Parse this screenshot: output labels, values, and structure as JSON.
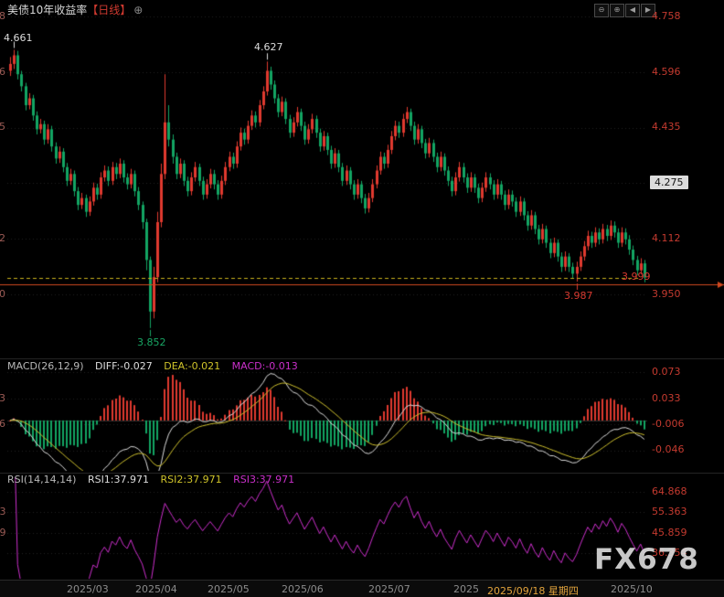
{
  "header": {
    "title": "美债10年收益率",
    "period": "【日线】",
    "add_icon": "⊕"
  },
  "toolbar": {
    "buttons": [
      {
        "name": "zoom-out",
        "glyph": "⊖"
      },
      {
        "name": "zoom-in",
        "glyph": "⊕"
      },
      {
        "name": "pan-left",
        "glyph": "◀"
      },
      {
        "name": "pan-right",
        "glyph": "▶"
      }
    ]
  },
  "right_axis": {
    "main": [
      "4.758",
      "4.596",
      "4.435",
      "4.112",
      "3.950"
    ],
    "highlight": "4.275",
    "macd": [
      "0.073",
      "0.033",
      "-0.006",
      "-0.046"
    ],
    "rsi": [
      "64.868",
      "55.363",
      "45.859",
      "36.354"
    ]
  },
  "indicator_rows": {
    "macd": {
      "name": "MACD(26,12,9)",
      "diff": "DIFF:-0.027",
      "dea": "DEA:-0.021",
      "macd": "MACD:-0.013"
    },
    "rsi": {
      "name": "RSI(14,14,14)",
      "rsi1": "RSI1:37.971",
      "rsi2": "RSI2:37.971",
      "rsi3": "RSI3:37.971"
    }
  },
  "x_axis": {
    "ticks": [
      "2025/03",
      "2025/04",
      "2025/05",
      "2025/06",
      "2025/07",
      "2025"
    ],
    "selected": "2025/09/18 星期四",
    "last": "2025/10"
  },
  "price_labels": {
    "last": "3.999"
  },
  "watermark": "FX678",
  "colors": {
    "candle_up": "#e03a2f",
    "candle_down": "#13a463",
    "diff_line": "#dcdcdc",
    "dea_line": "#cdbf2d",
    "rsi_line": "#cc2fcc",
    "dashed_line": "#c9b21d",
    "solid_line": "#d1491f",
    "axis_label": "#c43a2f",
    "grid": "#202020"
  },
  "chart_data": [
    {
      "type": "candlestick",
      "title": "美债10年收益率【日线】",
      "y_ticks": [
        4.758,
        4.596,
        4.435,
        4.273,
        4.112,
        3.95
      ],
      "x_tick_labels": [
        "2025/03",
        "2025/04",
        "2025/05",
        "2025/06",
        "2025/07",
        "2025",
        "2025/09/18 星期四",
        "2025/10"
      ],
      "last_close": 3.999,
      "dashed_line": 3.999,
      "solid_line": 3.978,
      "annotations": [
        {
          "index": 1,
          "label": "4.661",
          "placement": "above",
          "color": "#dcdcdc"
        },
        {
          "index": 68,
          "label": "4.627",
          "placement": "above",
          "color": "#dcdcdc"
        },
        {
          "index": 37,
          "label": "3.852",
          "placement": "below",
          "color": "#18a664"
        },
        {
          "index": 150,
          "label": "3.987",
          "placement": "below",
          "color": "#d83a30"
        }
      ],
      "candles": [
        [
          4.6,
          4.64,
          4.585,
          4.62
        ],
        [
          4.62,
          4.661,
          4.605,
          4.645
        ],
        [
          4.645,
          4.658,
          4.575,
          4.59
        ],
        [
          4.59,
          4.6,
          4.54,
          4.555
        ],
        [
          4.555,
          4.565,
          4.485,
          4.5
        ],
        [
          4.5,
          4.535,
          4.488,
          4.52
        ],
        [
          4.52,
          4.53,
          4.455,
          4.47
        ],
        [
          4.47,
          4.482,
          4.415,
          4.43
        ],
        [
          4.43,
          4.46,
          4.418,
          4.445
        ],
        [
          4.445,
          4.455,
          4.385,
          4.4
        ],
        [
          4.4,
          4.445,
          4.388,
          4.43
        ],
        [
          4.43,
          4.44,
          4.365,
          4.38
        ],
        [
          4.38,
          4.392,
          4.33,
          4.345
        ],
        [
          4.345,
          4.38,
          4.332,
          4.365
        ],
        [
          4.365,
          4.375,
          4.305,
          4.32
        ],
        [
          4.32,
          4.332,
          4.265,
          4.28
        ],
        [
          4.28,
          4.315,
          4.268,
          4.3
        ],
        [
          4.3,
          4.31,
          4.235,
          4.25
        ],
        [
          4.25,
          4.262,
          4.195,
          4.21
        ],
        [
          4.21,
          4.245,
          4.198,
          4.23
        ],
        [
          4.23,
          4.24,
          4.175,
          4.19
        ],
        [
          4.19,
          4.235,
          4.178,
          4.22
        ],
        [
          4.22,
          4.275,
          4.208,
          4.26
        ],
        [
          4.26,
          4.272,
          4.225,
          4.24
        ],
        [
          4.24,
          4.305,
          4.228,
          4.29
        ],
        [
          4.29,
          4.325,
          4.278,
          4.31
        ],
        [
          4.31,
          4.322,
          4.265,
          4.28
        ],
        [
          4.28,
          4.335,
          4.268,
          4.32
        ],
        [
          4.32,
          4.332,
          4.285,
          4.3
        ],
        [
          4.3,
          4.345,
          4.288,
          4.33
        ],
        [
          4.33,
          4.34,
          4.275,
          4.29
        ],
        [
          4.29,
          4.302,
          4.255,
          4.27
        ],
        [
          4.27,
          4.315,
          4.258,
          4.3
        ],
        [
          4.3,
          4.31,
          4.235,
          4.25
        ],
        [
          4.25,
          4.262,
          4.195,
          4.21
        ],
        [
          4.21,
          4.22,
          4.14,
          4.16
        ],
        [
          4.16,
          4.17,
          4.02,
          4.05
        ],
        [
          4.05,
          4.06,
          3.852,
          3.9
        ],
        [
          3.9,
          4.03,
          3.88,
          4.0
        ],
        [
          4.0,
          4.19,
          3.985,
          4.16
        ],
        [
          4.16,
          4.33,
          4.145,
          4.3
        ],
        [
          4.3,
          4.59,
          4.285,
          4.45
        ],
        [
          4.45,
          4.5,
          4.38,
          4.4
        ],
        [
          4.4,
          4.415,
          4.33,
          4.35
        ],
        [
          4.35,
          4.362,
          4.285,
          4.3
        ],
        [
          4.3,
          4.345,
          4.288,
          4.33
        ],
        [
          4.33,
          4.34,
          4.265,
          4.28
        ],
        [
          4.28,
          4.292,
          4.235,
          4.25
        ],
        [
          4.25,
          4.305,
          4.238,
          4.29
        ],
        [
          4.29,
          4.335,
          4.278,
          4.32
        ],
        [
          4.32,
          4.33,
          4.265,
          4.28
        ],
        [
          4.28,
          4.292,
          4.225,
          4.24
        ],
        [
          4.24,
          4.285,
          4.228,
          4.27
        ],
        [
          4.27,
          4.315,
          4.258,
          4.3
        ],
        [
          4.3,
          4.312,
          4.255,
          4.27
        ],
        [
          4.27,
          4.282,
          4.225,
          4.24
        ],
        [
          4.24,
          4.295,
          4.228,
          4.28
        ],
        [
          4.28,
          4.335,
          4.268,
          4.32
        ],
        [
          4.32,
          4.365,
          4.308,
          4.35
        ],
        [
          4.35,
          4.362,
          4.315,
          4.33
        ],
        [
          4.33,
          4.395,
          4.318,
          4.38
        ],
        [
          4.38,
          4.435,
          4.368,
          4.42
        ],
        [
          4.42,
          4.432,
          4.385,
          4.4
        ],
        [
          4.4,
          4.455,
          4.388,
          4.44
        ],
        [
          4.44,
          4.485,
          4.428,
          4.47
        ],
        [
          4.47,
          4.482,
          4.435,
          4.45
        ],
        [
          4.45,
          4.515,
          4.438,
          4.5
        ],
        [
          4.5,
          4.555,
          4.488,
          4.54
        ],
        [
          4.54,
          4.627,
          4.528,
          4.6
        ],
        [
          4.6,
          4.612,
          4.545,
          4.56
        ],
        [
          4.56,
          4.572,
          4.505,
          4.52
        ],
        [
          4.52,
          4.532,
          4.465,
          4.48
        ],
        [
          4.48,
          4.525,
          4.468,
          4.51
        ],
        [
          4.51,
          4.52,
          4.445,
          4.46
        ],
        [
          4.46,
          4.472,
          4.405,
          4.42
        ],
        [
          4.42,
          4.465,
          4.408,
          4.45
        ],
        [
          4.45,
          4.495,
          4.438,
          4.48
        ],
        [
          4.48,
          4.49,
          4.425,
          4.44
        ],
        [
          4.44,
          4.452,
          4.385,
          4.4
        ],
        [
          4.4,
          4.445,
          4.388,
          4.43
        ],
        [
          4.43,
          4.475,
          4.418,
          4.46
        ],
        [
          4.46,
          4.47,
          4.405,
          4.42
        ],
        [
          4.42,
          4.432,
          4.365,
          4.38
        ],
        [
          4.38,
          4.425,
          4.368,
          4.41
        ],
        [
          4.41,
          4.42,
          4.355,
          4.37
        ],
        [
          4.37,
          4.382,
          4.315,
          4.33
        ],
        [
          4.33,
          4.375,
          4.318,
          4.36
        ],
        [
          4.36,
          4.37,
          4.305,
          4.32
        ],
        [
          4.32,
          4.332,
          4.265,
          4.28
        ],
        [
          4.28,
          4.325,
          4.268,
          4.31
        ],
        [
          4.31,
          4.32,
          4.255,
          4.27
        ],
        [
          4.27,
          4.282,
          4.225,
          4.24
        ],
        [
          4.24,
          4.285,
          4.228,
          4.27
        ],
        [
          4.27,
          4.28,
          4.215,
          4.23
        ],
        [
          4.23,
          4.242,
          4.185,
          4.2
        ],
        [
          4.2,
          4.245,
          4.188,
          4.23
        ],
        [
          4.23,
          4.285,
          4.218,
          4.27
        ],
        [
          4.27,
          4.325,
          4.258,
          4.31
        ],
        [
          4.31,
          4.365,
          4.298,
          4.35
        ],
        [
          4.35,
          4.362,
          4.315,
          4.33
        ],
        [
          4.33,
          4.385,
          4.318,
          4.37
        ],
        [
          4.37,
          4.425,
          4.358,
          4.41
        ],
        [
          4.41,
          4.455,
          4.398,
          4.44
        ],
        [
          4.44,
          4.452,
          4.405,
          4.42
        ],
        [
          4.42,
          4.475,
          4.408,
          4.46
        ],
        [
          4.46,
          4.495,
          4.448,
          4.48
        ],
        [
          4.48,
          4.49,
          4.425,
          4.44
        ],
        [
          4.44,
          4.452,
          4.385,
          4.4
        ],
        [
          4.4,
          4.445,
          4.388,
          4.43
        ],
        [
          4.43,
          4.44,
          4.375,
          4.39
        ],
        [
          4.39,
          4.402,
          4.345,
          4.36
        ],
        [
          4.36,
          4.405,
          4.348,
          4.39
        ],
        [
          4.39,
          4.4,
          4.335,
          4.35
        ],
        [
          4.35,
          4.362,
          4.305,
          4.32
        ],
        [
          4.32,
          4.365,
          4.308,
          4.35
        ],
        [
          4.35,
          4.36,
          4.295,
          4.31
        ],
        [
          4.31,
          4.322,
          4.265,
          4.28
        ],
        [
          4.28,
          4.292,
          4.235,
          4.25
        ],
        [
          4.25,
          4.305,
          4.238,
          4.29
        ],
        [
          4.29,
          4.335,
          4.278,
          4.32
        ],
        [
          4.32,
          4.332,
          4.275,
          4.29
        ],
        [
          4.29,
          4.302,
          4.245,
          4.26
        ],
        [
          4.26,
          4.305,
          4.248,
          4.29
        ],
        [
          4.29,
          4.3,
          4.245,
          4.26
        ],
        [
          4.26,
          4.272,
          4.215,
          4.23
        ],
        [
          4.23,
          4.275,
          4.218,
          4.26
        ],
        [
          4.26,
          4.305,
          4.248,
          4.29
        ],
        [
          4.29,
          4.302,
          4.255,
          4.27
        ],
        [
          4.27,
          4.282,
          4.225,
          4.24
        ],
        [
          4.24,
          4.285,
          4.228,
          4.27
        ],
        [
          4.27,
          4.28,
          4.225,
          4.24
        ],
        [
          4.24,
          4.252,
          4.195,
          4.21
        ],
        [
          4.21,
          4.255,
          4.198,
          4.24
        ],
        [
          4.24,
          4.252,
          4.205,
          4.22
        ],
        [
          4.22,
          4.232,
          4.175,
          4.19
        ],
        [
          4.19,
          4.235,
          4.178,
          4.22
        ],
        [
          4.22,
          4.23,
          4.165,
          4.18
        ],
        [
          4.18,
          4.192,
          4.135,
          4.15
        ],
        [
          4.15,
          4.195,
          4.138,
          4.18
        ],
        [
          4.18,
          4.19,
          4.125,
          4.14
        ],
        [
          4.14,
          4.152,
          4.095,
          4.11
        ],
        [
          4.11,
          4.155,
          4.098,
          4.14
        ],
        [
          4.14,
          4.15,
          4.085,
          4.1
        ],
        [
          4.1,
          4.112,
          4.055,
          4.07
        ],
        [
          4.07,
          4.115,
          4.058,
          4.1
        ],
        [
          4.1,
          4.11,
          4.045,
          4.06
        ],
        [
          4.06,
          4.072,
          4.015,
          4.03
        ],
        [
          4.03,
          4.075,
          4.018,
          4.06
        ],
        [
          4.06,
          4.07,
          4.015,
          4.03
        ],
        [
          4.03,
          4.042,
          3.998,
          4.01
        ],
        [
          4.01,
          4.045,
          3.987,
          4.03
        ],
        [
          4.03,
          4.075,
          4.018,
          4.06
        ],
        [
          4.06,
          4.105,
          4.048,
          4.09
        ],
        [
          4.09,
          4.135,
          4.078,
          4.12
        ],
        [
          4.12,
          4.132,
          4.085,
          4.1
        ],
        [
          4.1,
          4.145,
          4.088,
          4.13
        ],
        [
          4.13,
          4.142,
          4.095,
          4.11
        ],
        [
          4.11,
          4.155,
          4.098,
          4.14
        ],
        [
          4.14,
          4.152,
          4.105,
          4.12
        ],
        [
          4.12,
          4.165,
          4.108,
          4.15
        ],
        [
          4.15,
          4.162,
          4.115,
          4.13
        ],
        [
          4.13,
          4.142,
          4.085,
          4.1
        ],
        [
          4.1,
          4.145,
          4.088,
          4.13
        ],
        [
          4.13,
          4.142,
          4.095,
          4.11
        ],
        [
          4.11,
          4.122,
          4.065,
          4.08
        ],
        [
          4.08,
          4.092,
          4.035,
          4.05
        ],
        [
          4.05,
          4.062,
          4.005,
          4.02
        ],
        [
          4.02,
          4.055,
          4.008,
          4.04
        ],
        [
          4.04,
          4.05,
          3.985,
          3.999
        ]
      ]
    },
    {
      "type": "macd",
      "params": [
        26,
        12,
        9
      ],
      "readout": {
        "diff": -0.027,
        "dea": -0.021,
        "macd": -0.013
      },
      "y_ticks": [
        0.073,
        0.033,
        -0.006,
        -0.046
      ],
      "note": "DIFF/DEA lines and histogram computed from candle closes"
    },
    {
      "type": "rsi",
      "params": [
        14,
        14,
        14
      ],
      "readout": {
        "rsi1": 37.971,
        "rsi2": 37.971,
        "rsi3": 37.971
      },
      "y_ticks": [
        64.868,
        55.363,
        45.859,
        36.354
      ],
      "note": "RSI line computed from candle closes; three lines coincide"
    }
  ]
}
